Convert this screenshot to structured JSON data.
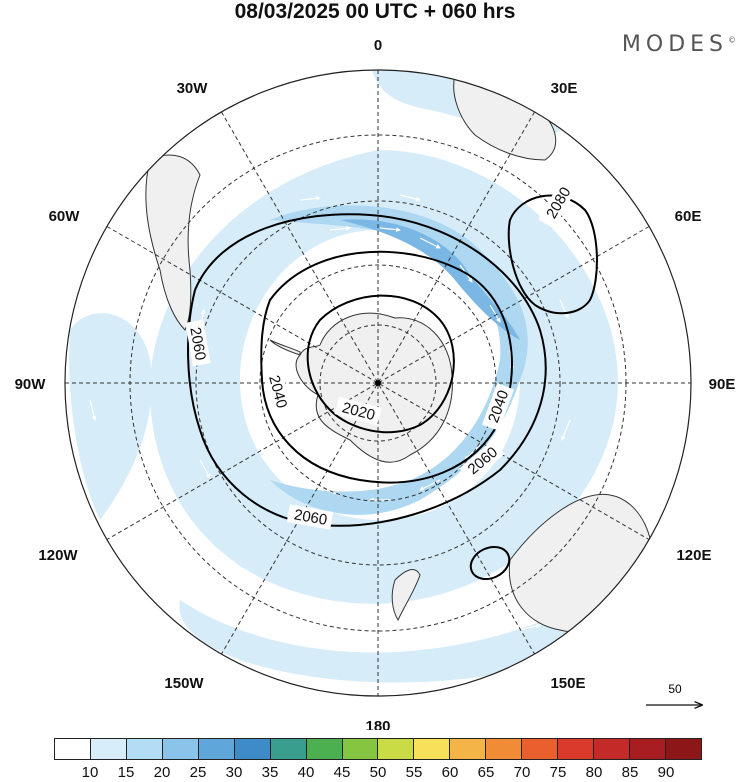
{
  "title": "08/03/2025  00 UTC  + 060 hrs",
  "brand": "MODES",
  "brand_mark": "©",
  "map": {
    "projection": "south-polar-stereographic",
    "longitude_labels": {
      "top": "0",
      "bottom": "180",
      "left": "90W",
      "right": "90E",
      "upper_left_30": "30W",
      "upper_right_30": "30E",
      "upper_left_60": "60W",
      "upper_right_60": "60E",
      "lower_left_120": "120W",
      "lower_right_120": "120E",
      "lower_left_150": "150W",
      "lower_right_150": "150E"
    },
    "contour_labels": [
      "2080",
      "2060",
      "2060",
      "2060",
      "2040",
      "2040",
      "2020"
    ],
    "fill_color_light": "#d6ecf9",
    "fill_color_mid": "#aed8f2",
    "fill_color_strong": "#7ab7e4",
    "land_color": "#f0f0f0"
  },
  "reference_vector": {
    "label": "50"
  },
  "colorbar": {
    "colors": [
      "#ffffff",
      "#d7edfa",
      "#b3ddf4",
      "#8ac4ea",
      "#5fa6da",
      "#3e8cc7",
      "#3a9e8f",
      "#4cb050",
      "#86c540",
      "#c9dc45",
      "#f7e05a",
      "#f4b447",
      "#ef8c35",
      "#e95f2d",
      "#d93a2c",
      "#c42a28",
      "#a81d22",
      "#8c1618"
    ],
    "labels": [
      "10",
      "15",
      "20",
      "25",
      "30",
      "35",
      "40",
      "45",
      "50",
      "55",
      "60",
      "65",
      "70",
      "75",
      "80",
      "85",
      "90"
    ]
  }
}
